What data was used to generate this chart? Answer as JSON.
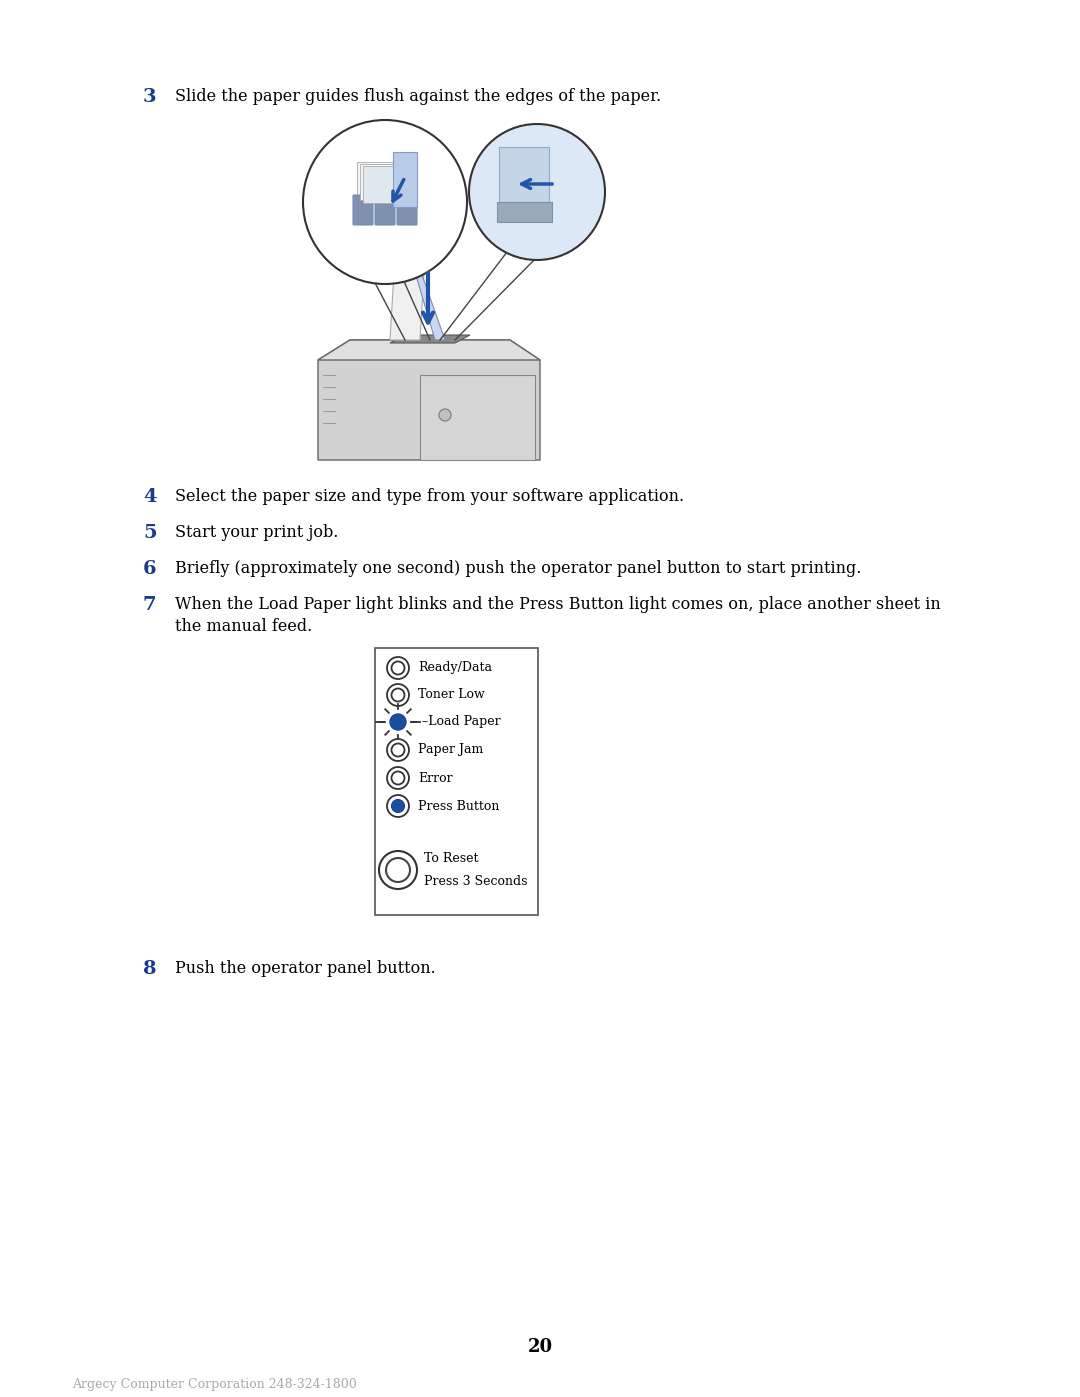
{
  "bg_color": "#ffffff",
  "page_number": "20",
  "footer_text": "Argecy Computer Corporation 248-324-1800",
  "step3_number": "3",
  "step3_text": "Slide the paper guides flush against the edges of the paper.",
  "step4_number": "4",
  "step4_text": "Select the paper size and type from your software application.",
  "step5_number": "5",
  "step5_text": "Start your print job.",
  "step6_number": "6",
  "step6_text": "Briefly (approximately one second) push the operator panel button to start printing.",
  "step7_number": "7",
  "step7_text_line1": "When the Load Paper light blinks and the Press Button light comes on, place another sheet in",
  "step7_text_line2": "the manual feed.",
  "step8_number": "8",
  "step8_text": "Push the operator panel button.",
  "panel_labels": [
    "Ready/Data",
    "Toner Low",
    "Load Paper",
    "Paper Jam",
    "Error",
    "Press Button"
  ],
  "panel_reset_line1": "To Reset",
  "panel_reset_line2": "Press 3 Seconds",
  "number_color": "#1a3a8f",
  "text_color": "#000000",
  "footer_color": "#aaaaaa",
  "blue_fill": "#1a4fa0",
  "blue_light": "#7090c8",
  "blue_arrow": "#2255aa",
  "gray_dark": "#888888",
  "gray_mid": "#bbbbbb",
  "gray_light": "#d8d8d8",
  "gray_bg": "#e0e0e0",
  "line_color": "#333333"
}
